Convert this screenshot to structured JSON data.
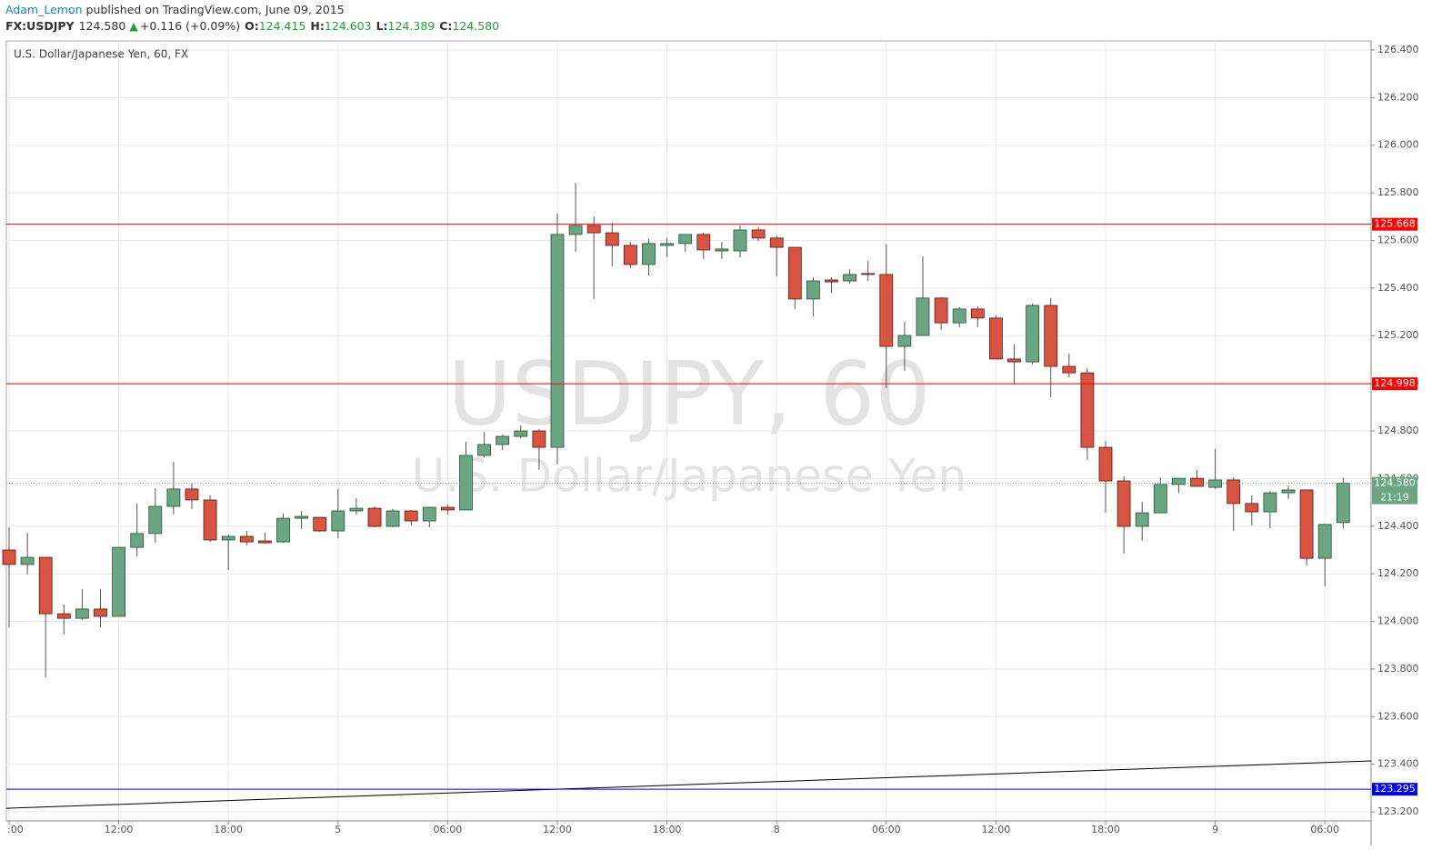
{
  "header": {
    "author": "Adam_Lemon",
    "published": "published on TradingView.com, June 09, 2015",
    "symbol": "FX:USDJPY",
    "price": "124.580",
    "arrow": "▲",
    "change": "+0.116 (+0.09%)",
    "ohlc": [
      {
        "key": "O:",
        "value": "124.415"
      },
      {
        "key": "H:",
        "value": "124.603"
      },
      {
        "key": "L:",
        "value": "124.389"
      },
      {
        "key": "C:",
        "value": "124.580"
      }
    ]
  },
  "chart_data": {
    "type": "candlestick",
    "legend": "U.S. Dollar/Japanese Yen, 60, FX",
    "watermark": [
      "USDJPY, 60",
      "U.S. Dollar/Japanese Yen"
    ],
    "categories": [
      ":00",
      null,
      null,
      null,
      null,
      null,
      "12:00",
      null,
      null,
      null,
      null,
      null,
      "18:00",
      null,
      null,
      null,
      null,
      null,
      "5",
      null,
      null,
      null,
      null,
      null,
      "06:00",
      null,
      null,
      null,
      null,
      null,
      "12:00",
      null,
      null,
      null,
      null,
      null,
      "18:00",
      null,
      null,
      null,
      null,
      null,
      "8",
      null,
      null,
      null,
      null,
      null,
      "06:00",
      null,
      null,
      null,
      null,
      null,
      "12:00",
      null,
      null,
      null,
      null,
      null,
      "18:00",
      null,
      null,
      null,
      null,
      null,
      "9",
      null,
      null,
      null,
      null,
      null,
      "06:00",
      null
    ],
    "open": [
      124.3,
      124.239,
      124.269,
      124.032,
      124.013,
      124.052,
      124.021,
      124.311,
      124.369,
      124.483,
      124.556,
      124.51,
      124.342,
      124.357,
      124.338,
      124.334,
      124.433,
      124.437,
      124.38,
      124.464,
      124.475,
      124.399,
      124.464,
      124.422,
      124.479,
      124.468,
      124.697,
      124.743,
      124.777,
      124.8,
      124.731,
      125.625,
      125.663,
      125.632,
      125.579,
      125.499,
      125.579,
      125.587,
      125.625,
      125.556,
      125.556,
      125.644,
      125.61,
      125.571,
      125.354,
      125.434,
      125.43,
      125.461,
      125.457,
      125.155,
      125.201,
      125.358,
      125.254,
      125.312,
      125.274,
      125.102,
      125.09,
      125.327,
      125.071,
      125.044,
      124.731,
      124.59,
      124.399,
      124.456,
      124.575,
      124.601,
      124.563,
      124.594,
      124.495,
      124.46,
      124.54,
      124.552,
      124.265,
      124.415
    ],
    "high": [
      124.395,
      124.372,
      124.269,
      124.071,
      124.136,
      124.136,
      124.311,
      124.495,
      124.559,
      124.67,
      124.579,
      124.529,
      124.364,
      124.38,
      124.372,
      124.453,
      124.464,
      124.437,
      124.556,
      124.517,
      124.483,
      124.472,
      124.468,
      124.479,
      124.491,
      124.754,
      124.796,
      124.785,
      124.823,
      124.808,
      125.713,
      125.842,
      125.701,
      125.674,
      125.594,
      125.606,
      125.61,
      125.625,
      125.632,
      125.594,
      125.663,
      125.655,
      125.621,
      125.571,
      125.445,
      125.445,
      125.48,
      125.514,
      125.583,
      125.258,
      125.533,
      125.361,
      125.319,
      125.323,
      125.285,
      125.163,
      125.335,
      125.358,
      125.125,
      125.063,
      124.758,
      124.609,
      124.502,
      124.605,
      124.601,
      124.636,
      124.724,
      124.605,
      124.529,
      124.548,
      124.571,
      124.552,
      124.411,
      124.603
    ],
    "low": [
      123.975,
      124.197,
      123.765,
      123.945,
      124.006,
      123.975,
      124.021,
      124.273,
      124.33,
      124.449,
      124.472,
      124.334,
      124.216,
      124.319,
      124.327,
      124.33,
      124.388,
      124.376,
      124.349,
      124.449,
      124.395,
      124.395,
      124.403,
      124.395,
      124.449,
      124.468,
      124.689,
      124.72,
      124.769,
      124.636,
      124.659,
      125.552,
      125.354,
      125.491,
      125.484,
      125.453,
      125.529,
      125.552,
      125.522,
      125.522,
      125.529,
      125.598,
      125.449,
      125.312,
      125.281,
      125.38,
      125.419,
      125.43,
      124.98,
      125.052,
      125.201,
      125.224,
      125.235,
      125.235,
      125.102,
      124.995,
      125.079,
      124.941,
      125.025,
      124.678,
      124.456,
      124.285,
      124.338,
      124.456,
      124.54,
      124.567,
      124.556,
      124.38,
      124.403,
      124.391,
      124.514,
      124.235,
      124.147,
      124.389
    ],
    "close": [
      124.239,
      124.269,
      124.032,
      124.013,
      124.052,
      124.021,
      124.311,
      124.369,
      124.483,
      124.556,
      124.51,
      124.342,
      124.357,
      124.334,
      124.33,
      124.433,
      124.441,
      124.38,
      124.464,
      124.475,
      124.399,
      124.464,
      124.422,
      124.479,
      124.468,
      124.697,
      124.743,
      124.777,
      124.8,
      124.731,
      125.625,
      125.663,
      125.632,
      125.579,
      125.499,
      125.587,
      125.587,
      125.625,
      125.56,
      125.564,
      125.644,
      125.61,
      125.571,
      125.354,
      125.43,
      125.426,
      125.457,
      125.457,
      125.155,
      125.201,
      125.358,
      125.254,
      125.312,
      125.274,
      125.102,
      125.09,
      125.327,
      125.071,
      125.044,
      124.731,
      124.59,
      124.399,
      124.456,
      124.575,
      124.601,
      124.567,
      124.594,
      124.495,
      124.46,
      124.54,
      124.552,
      124.265,
      124.407,
      124.58
    ],
    "up_color": "#6ba583",
    "down_color": "#d75442",
    "ylim": [
      123.162,
      126.438
    ],
    "yticks": [
      {
        "value": 123.2,
        "label": "123.200"
      },
      {
        "value": 123.4,
        "label": "123.400"
      },
      {
        "value": 123.6,
        "label": "123.600"
      },
      {
        "value": 123.8,
        "label": "123.800"
      },
      {
        "value": 124.0,
        "label": "124.000"
      },
      {
        "value": 124.2,
        "label": "124.200"
      },
      {
        "value": 124.4,
        "label": "124.400"
      },
      {
        "value": 124.6,
        "label": "124.600"
      },
      {
        "value": 124.8,
        "label": "124.800"
      },
      {
        "value": 125.0,
        "label": "125.000"
      },
      {
        "value": 125.2,
        "label": "125.200"
      },
      {
        "value": 125.4,
        "label": "125.400"
      },
      {
        "value": 125.6,
        "label": "125.600"
      },
      {
        "value": 125.8,
        "label": "125.800"
      },
      {
        "value": 126.0,
        "label": "126.000"
      },
      {
        "value": 126.2,
        "label": "126.200"
      },
      {
        "value": 126.4,
        "label": "126.400"
      }
    ],
    "grid": true,
    "levels": [
      {
        "value": 125.668,
        "color": "#ff0000"
      },
      {
        "value": 124.998,
        "color": "#ff0000"
      },
      {
        "value": 123.295,
        "color": "#0000ff"
      }
    ],
    "trendline": {
      "values": [
        123.215,
        123.414
      ],
      "color": "#000000"
    },
    "last_price": {
      "value": 124.58,
      "label": "124.580",
      "countdown": "21:19"
    }
  }
}
